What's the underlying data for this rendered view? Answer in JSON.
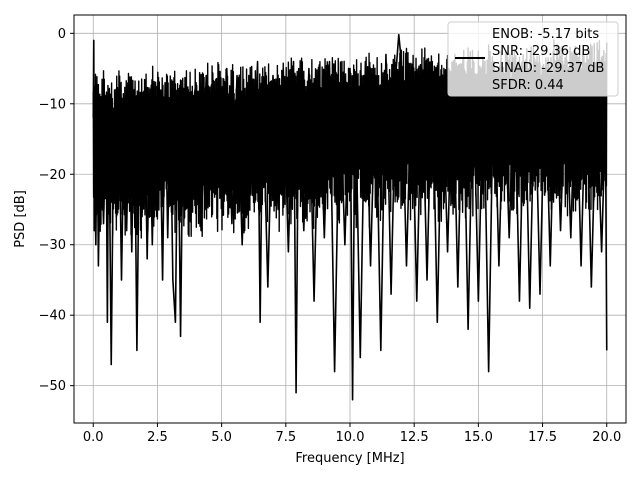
{
  "chart_data": {
    "type": "line",
    "title": "",
    "xlabel": "Frequency [MHz]",
    "ylabel": "PSD [dB]",
    "xlim": [
      -0.75,
      20.75
    ],
    "ylim": [
      -55.3,
      2.6
    ],
    "xticks": [
      0.0,
      2.5,
      5.0,
      7.5,
      10.0,
      12.5,
      15.0,
      17.5,
      20.0
    ],
    "xtick_labels": [
      "0.0",
      "2.5",
      "5.0",
      "7.5",
      "10.0",
      "12.5",
      "15.0",
      "17.5",
      "20.0"
    ],
    "yticks": [
      0,
      -10,
      -20,
      -30,
      -40,
      -50
    ],
    "ytick_labels": [
      "0",
      "−10",
      "−20",
      "−30",
      "−40",
      "−50"
    ],
    "grid": true,
    "legend": {
      "placement": "top-right",
      "lines": [
        "ENOB: -5.17 bits",
        "SNR: -29.36 dB",
        "SINAD: -29.37 dB",
        "SFDR: 0.44"
      ]
    },
    "series": [
      {
        "name": "ENOB: -5.17 bits\nSNR: -29.36 dB\nSINAD: -29.37 dB\nSFDR: 0.44",
        "color": "#000000",
        "x": [
          0.0,
          0.02,
          0.04,
          0.06,
          0.08,
          0.1,
          0.15,
          0.2,
          0.3,
          0.4,
          0.5,
          0.55,
          0.6,
          0.7,
          0.8,
          0.9,
          1.0,
          1.1,
          1.2,
          1.3,
          1.4,
          1.5,
          1.6,
          1.7,
          1.8,
          1.9,
          2.0,
          2.1,
          2.2,
          2.3,
          2.4,
          2.5,
          2.6,
          2.7,
          2.8,
          2.9,
          3.0,
          3.1,
          3.2,
          3.3,
          3.4,
          3.5,
          3.6,
          3.7,
          3.8,
          3.9,
          4.0,
          4.2,
          4.4,
          4.6,
          4.8,
          5.0,
          5.2,
          5.4,
          5.6,
          5.8,
          6.0,
          6.2,
          6.4,
          6.5,
          6.6,
          6.8,
          7.0,
          7.2,
          7.4,
          7.6,
          7.8,
          7.9,
          8.0,
          8.2,
          8.4,
          8.6,
          8.8,
          9.0,
          9.2,
          9.4,
          9.6,
          9.8,
          10.0,
          10.1,
          10.2,
          10.4,
          10.6,
          10.8,
          11.0,
          11.2,
          11.4,
          11.6,
          11.8,
          11.9,
          12.0,
          12.2,
          12.4,
          12.6,
          12.8,
          13.0,
          13.2,
          13.4,
          13.6,
          13.8,
          14.0,
          14.2,
          14.4,
          14.6,
          14.8,
          15.0,
          15.2,
          15.4,
          15.6,
          15.8,
          16.0,
          16.2,
          16.4,
          16.6,
          16.8,
          17.0,
          17.2,
          17.4,
          17.6,
          17.8,
          18.0,
          18.2,
          18.4,
          18.6,
          18.8,
          19.0,
          19.2,
          19.4,
          19.6,
          19.8,
          19.95,
          20.0
        ],
        "y": [
          -12,
          -1,
          -28,
          -8,
          -25,
          -30,
          -10,
          -33,
          -9,
          -27,
          -12,
          -41,
          -8,
          -47,
          -11,
          -26,
          -9,
          -35,
          -12,
          -28,
          -10,
          -31,
          -8,
          -45,
          -13,
          -26,
          -9,
          -32,
          -11,
          -30,
          -8,
          -24,
          -12,
          -35,
          -7,
          -29,
          -10,
          -35,
          -41,
          -9,
          -43,
          -11,
          -25,
          -8,
          -26,
          -10,
          -7,
          -28,
          -6,
          -22,
          -9,
          -24,
          -5,
          -27,
          -6,
          -30,
          -7,
          -23,
          -4,
          -41,
          -8,
          -36,
          -6,
          -25,
          -5,
          -31,
          -4,
          -51,
          -7,
          -28,
          -5,
          -38,
          -6,
          -29,
          -4,
          -48,
          -7,
          -30,
          -5,
          -52,
          -6,
          -46,
          -4,
          -33,
          -6,
          -45,
          -3,
          -37,
          -5,
          -0.2,
          -4,
          -33,
          -6,
          -38,
          -5,
          -35,
          -4,
          -41,
          -6,
          -31,
          -5,
          -36,
          -4,
          -42,
          -6,
          -38,
          -5,
          -48,
          -4,
          -33,
          -6,
          -29,
          -5,
          -38,
          -4,
          -39,
          -6,
          -37,
          -5,
          -33,
          -4,
          -28,
          -6,
          -29,
          -4,
          -33,
          -5,
          -36,
          -8,
          -31,
          -12,
          -45
        ]
      }
    ]
  }
}
